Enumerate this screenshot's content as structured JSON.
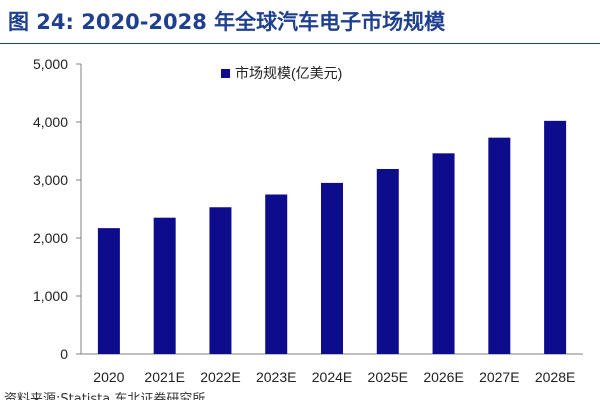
{
  "figure": {
    "title": "图 24:  2020-2028 年全球汽车电子市场规模"
  },
  "source_note": "资料来源:Statista,东北证券研究所",
  "colors": {
    "bar": "#0c0c8c",
    "title": "#1f3f8f"
  },
  "chart_data": {
    "type": "bar",
    "title": "",
    "xlabel": "",
    "ylabel": "",
    "categories": [
      "2020",
      "2021E",
      "2022E",
      "2023E",
      "2024E",
      "2025E",
      "2026E",
      "2027E",
      "2028E"
    ],
    "series": [
      {
        "name": "市场规模(亿美元)",
        "values": [
          2170,
          2350,
          2530,
          2750,
          2950,
          3190,
          3460,
          3730,
          4020
        ]
      }
    ],
    "ylim": [
      0,
      5000
    ],
    "yticks": [
      0,
      1000,
      2000,
      3000,
      4000,
      5000
    ],
    "ytick_labels": [
      "0",
      "1,000",
      "2,000",
      "3,000",
      "4,000",
      "5,000"
    ],
    "grid": false,
    "legend_position": "top-left"
  }
}
